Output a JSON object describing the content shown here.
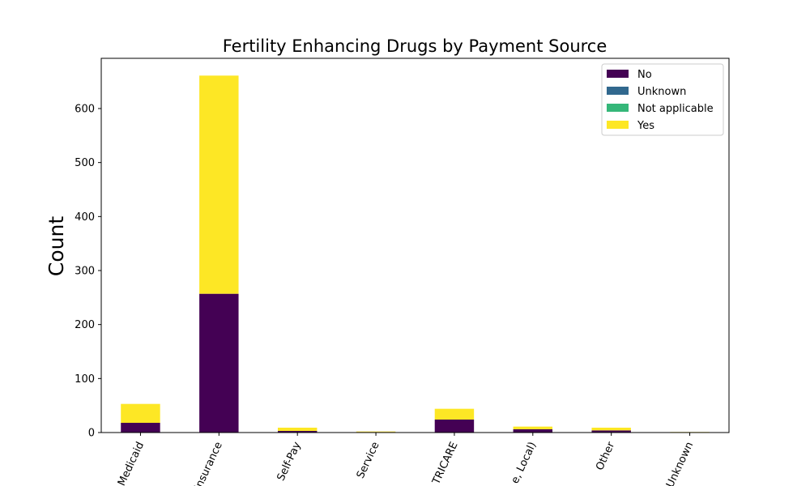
{
  "chart_data": {
    "type": "bar",
    "stacked": true,
    "title": "Fertility Enhancing Drugs by Payment Source",
    "xlabel": "",
    "ylabel": "Count",
    "ylim": [
      0,
      693
    ],
    "yticks": [
      0,
      100,
      200,
      300,
      400,
      500,
      600
    ],
    "categories": [
      "Medicaid",
      "Insurance",
      "Self-Pay",
      "Service",
      "TRICARE",
      "e, Local)",
      "Other",
      "Unknown"
    ],
    "series": [
      {
        "name": "No",
        "color": "#440154",
        "values": [
          18,
          257,
          3,
          1,
          24,
          6,
          4,
          0
        ]
      },
      {
        "name": "Unknown",
        "color": "#31688e",
        "values": [
          0,
          0,
          0,
          0,
          0,
          0,
          0,
          0
        ]
      },
      {
        "name": "Not applicable",
        "color": "#35b779",
        "values": [
          0,
          0,
          0,
          0,
          0,
          0,
          0,
          0
        ]
      },
      {
        "name": "Yes",
        "color": "#fde725",
        "values": [
          35,
          404,
          6,
          1,
          20,
          5,
          5,
          1
        ]
      }
    ],
    "legend": {
      "placement": "top-right"
    },
    "grid": false
  }
}
